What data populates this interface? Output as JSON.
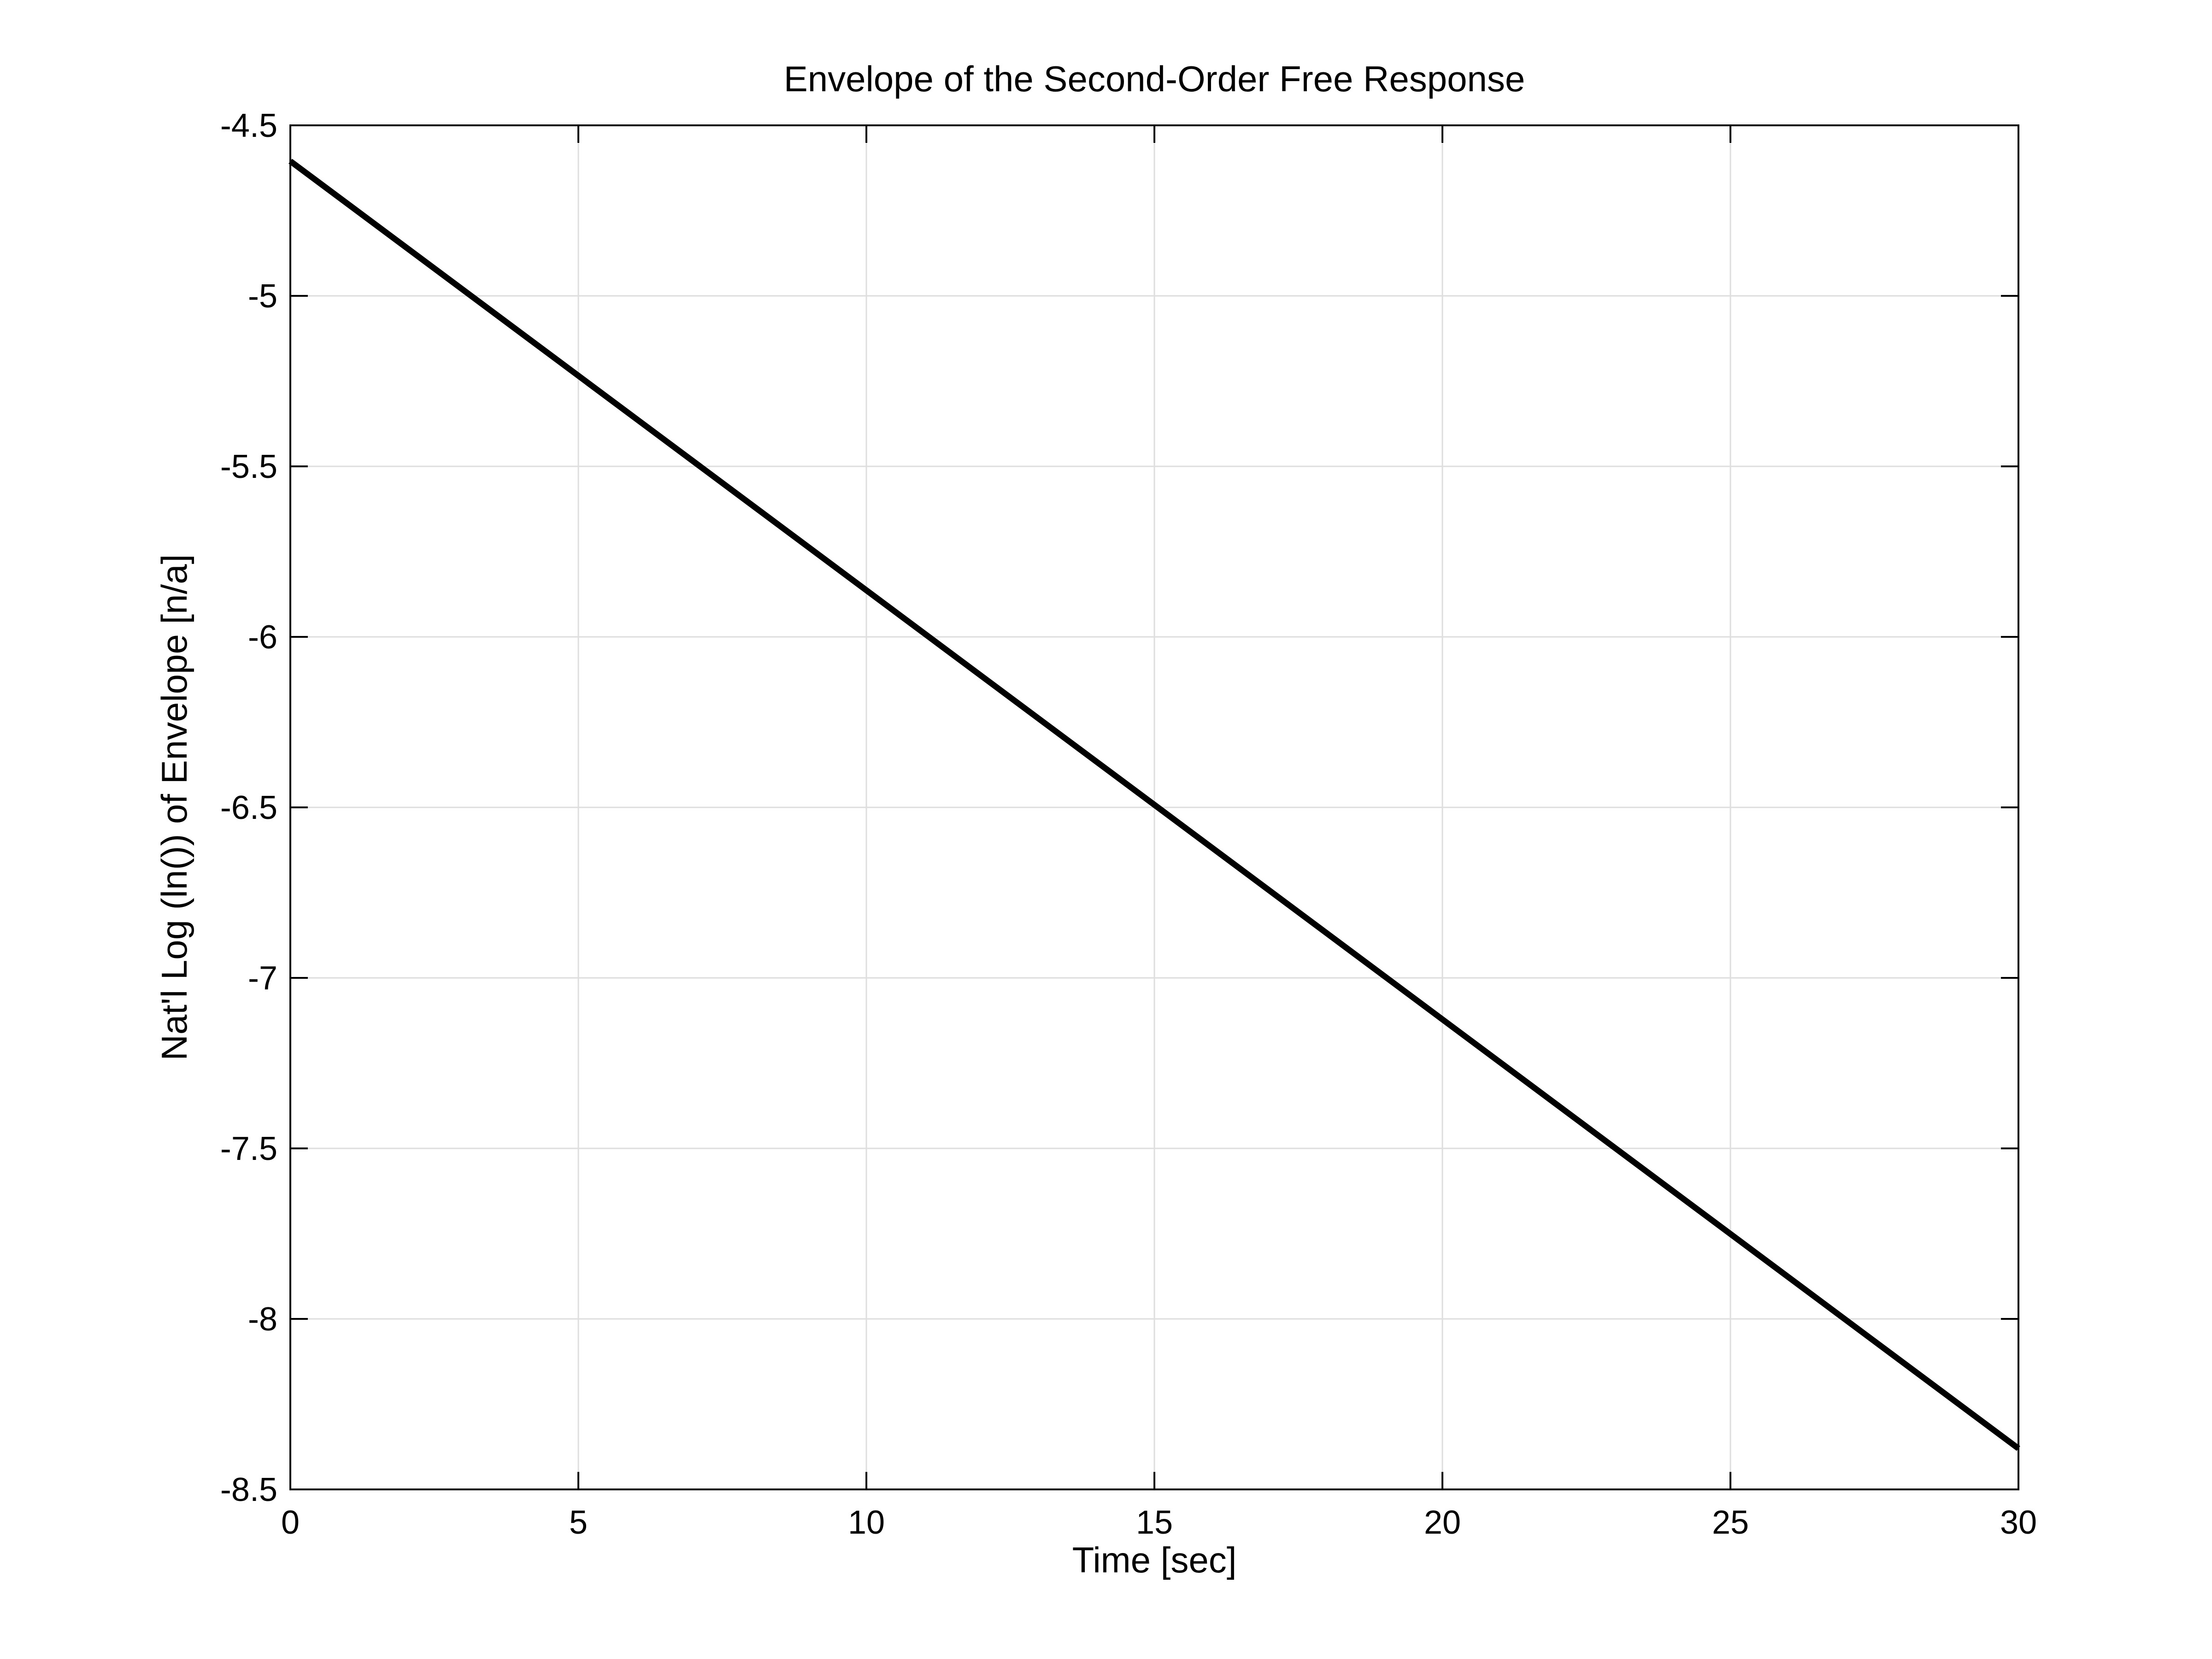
{
  "chart_data": {
    "type": "line",
    "title": "Envelope of the Second-Order Free Response",
    "xlabel": "Time [sec]",
    "ylabel": "Nat'l Log (ln()) of Envelope [n/a]",
    "xlim": [
      0,
      30
    ],
    "ylim": [
      -8.5,
      -4.5
    ],
    "xticks": [
      0,
      5,
      10,
      15,
      20,
      25,
      30
    ],
    "yticks": [
      -8.5,
      -8,
      -7.5,
      -7,
      -6.5,
      -6,
      -5.5,
      -5,
      -4.5
    ],
    "xtick_labels": [
      "0",
      "5",
      "10",
      "15",
      "20",
      "25",
      "30"
    ],
    "ytick_labels": [
      "-8.5",
      "-8",
      "-7.5",
      "-7",
      "-6.5",
      "-6",
      "-5.5",
      "-5",
      "-4.5"
    ],
    "grid": true,
    "series": [
      {
        "color": "#000000",
        "x": [
          0,
          30
        ],
        "y": [
          -4.605,
          -8.38
        ]
      }
    ]
  }
}
